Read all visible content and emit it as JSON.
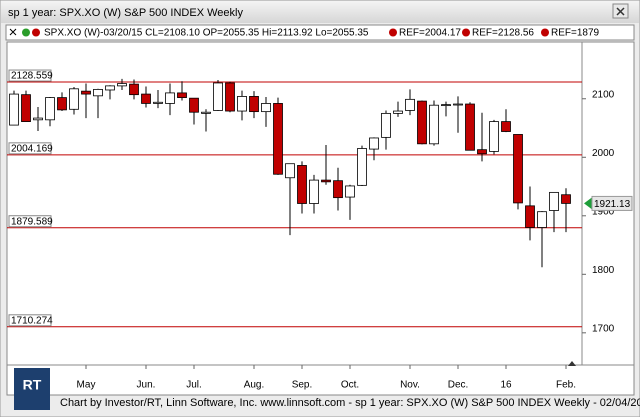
{
  "window_title": "sp 1 year: SPX.XO (W) S&P 500 INDEX Weekly",
  "info": {
    "quote": "SPX.XO (W)-03/20/15 CL=2108.10 OP=2055.35 Hi=2113.92 Lo=2055.35",
    "refs": [
      "REF=2004.17",
      "REF=2128.56",
      "REF=1879"
    ]
  },
  "footer": "Chart by Investor/RT, Linn Software, Inc. www.linnsoft.com - sp 1 year: SPX.XO (W) S&P 500 INDEX Weekly - 02/04/20",
  "logo_text": "RT",
  "chart_data": {
    "type": "candlestick",
    "up_color": "#ffffff",
    "down_color": "#c00000",
    "line_color": "#c00000",
    "open": [
      2055,
      2107,
      2064,
      2064,
      2102,
      2082,
      2113,
      2105,
      2115,
      2122,
      2125,
      2108,
      2092,
      2092,
      2110,
      2101,
      2075,
      2080,
      2127,
      2079,
      2104,
      2078,
      2092,
      1965,
      1986,
      1921,
      1961,
      1960,
      1932,
      1952,
      2014,
      2034,
      2075,
      2080,
      2096,
      2023,
      2089,
      2090,
      2091,
      2013,
      2010,
      2061,
      2039,
      1917,
      1880,
      1909,
      1936
    ],
    "high": [
      2114,
      2114,
      2086,
      2103,
      2111,
      2120,
      2126,
      2117,
      2123,
      2134,
      2133,
      2121,
      2115,
      2126,
      2130,
      2101,
      2082,
      2132,
      2129,
      2114,
      2113,
      2103,
      2102,
      1989,
      1993,
      1970,
      2021,
      1982,
      1953,
      2020,
      2034,
      2080,
      2095,
      2116,
      2097,
      2097,
      2095,
      2104,
      2094,
      2076,
      2064,
      2082,
      2039,
      1950,
      1908,
      1940,
      1947
    ],
    "low": [
      2055,
      2062,
      2045,
      2053,
      2079,
      2073,
      2067,
      2067,
      2099,
      2115,
      2099,
      2085,
      2084,
      2072,
      2097,
      2056,
      2044,
      2079,
      2077,
      2063,
      2067,
      2052,
      1970,
      1867,
      1904,
      1904,
      1953,
      1909,
      1893,
      1951,
      1995,
      2013,
      2069,
      2072,
      2022,
      2020,
      2070,
      2042,
      2012,
      1993,
      2005,
      2043,
      1911,
      1858,
      1812,
      1872,
      1872
    ],
    "close": [
      2108,
      2061,
      2067,
      2102,
      2081,
      2117,
      2108,
      2116,
      2122,
      2126,
      2107,
      2092,
      2094,
      2110,
      2102,
      2077,
      2077,
      2127,
      2079,
      2104,
      2078,
      2092,
      1971,
      1989,
      1921,
      1961,
      1958,
      1931,
      1951,
      2015,
      2033,
      2075,
      2079,
      2099,
      2023,
      2089,
      2090,
      2091,
      2012,
      2006,
      2061,
      2044,
      1922,
      1880,
      1907,
      1940,
      1921.13
    ],
    "xticks": [
      {
        "value": 6,
        "label": "May"
      },
      {
        "value": 11,
        "label": "Jun."
      },
      {
        "value": 15,
        "label": "Jul."
      },
      {
        "value": 20,
        "label": "Aug."
      },
      {
        "value": 24,
        "label": "Sep."
      },
      {
        "value": 28,
        "label": "Oct."
      },
      {
        "value": 33,
        "label": "Nov."
      },
      {
        "value": 37,
        "label": "Dec."
      },
      {
        "value": 41,
        "label": "16"
      },
      {
        "value": 46,
        "label": "Feb."
      }
    ],
    "ylim": [
      1645,
      2197
    ],
    "yticks": [
      1700,
      1800,
      1900,
      2000,
      2100
    ],
    "hlines": [
      2128.559,
      2004.169,
      1879.589,
      1710.274
    ],
    "last_price": 1921.13,
    "last_color": "#1f9e3a"
  }
}
